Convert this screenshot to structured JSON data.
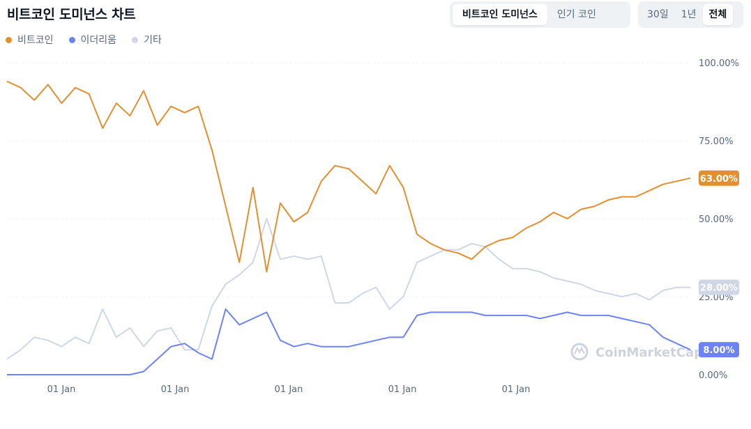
{
  "title": "비트코인 도미넌스 차트",
  "view_toggle": [
    {
      "label": "비트코인 도미넌스",
      "active": true
    },
    {
      "label": "인기 코인",
      "active": false
    }
  ],
  "range_toggle": [
    {
      "label": "30일",
      "active": false
    },
    {
      "label": "1년",
      "active": false
    },
    {
      "label": "전체",
      "active": true
    }
  ],
  "watermark": "CoinMarketCap",
  "chart_data": {
    "type": "line",
    "title": "비트코인 도미넌스 차트",
    "ylim": [
      0,
      100
    ],
    "y_ticks": [
      "0.00%",
      "25.00%",
      "50.00%",
      "75.00%",
      "100.00%"
    ],
    "x_ticks": [
      "01 Jan",
      "01 Jan",
      "01 Jan",
      "01 Jan",
      "01 Jan"
    ],
    "grid": true,
    "legend_position": "top-left",
    "x": [
      0,
      2,
      4,
      6,
      8,
      10,
      12,
      14,
      16,
      18,
      20,
      22,
      24,
      26,
      28,
      30,
      32,
      34,
      36,
      38,
      40,
      42,
      44,
      46,
      48,
      50,
      52,
      54,
      56,
      58,
      60,
      62,
      64,
      66,
      68,
      70,
      72,
      74,
      76,
      78,
      80,
      82,
      84,
      86,
      88,
      90,
      92,
      94,
      96,
      98,
      100
    ],
    "series": [
      {
        "name": "비트코인",
        "color": "#e38e2f",
        "end_label": "63.00%",
        "values": [
          94,
          92,
          88,
          93,
          87,
          92,
          90,
          79,
          87,
          83,
          91,
          80,
          86,
          84,
          86,
          72,
          54,
          36,
          60,
          33,
          55,
          49,
          52,
          62,
          67,
          66,
          62,
          58,
          67,
          60,
          45,
          42,
          40,
          39,
          37,
          41,
          43,
          44,
          47,
          49,
          52,
          50,
          53,
          54,
          56,
          57,
          57,
          59,
          61,
          62,
          63
        ]
      },
      {
        "name": "이더리움",
        "color": "#6d82f5",
        "end_label": "8.00%",
        "values": [
          0,
          0,
          0,
          0,
          0,
          0,
          0,
          0,
          0,
          0,
          1,
          5,
          9,
          10,
          7,
          5,
          21,
          16,
          18,
          20,
          11,
          9,
          10,
          9,
          9,
          9,
          10,
          11,
          12,
          12,
          19,
          20,
          20,
          20,
          20,
          19,
          19,
          19,
          19,
          18,
          19,
          20,
          19,
          19,
          19,
          18,
          17,
          16,
          12,
          10,
          8
        ]
      },
      {
        "name": "기타",
        "color": "#cfd6e4",
        "end_label": "28.00%",
        "values": [
          5,
          8,
          12,
          11,
          9,
          12,
          10,
          21,
          12,
          15,
          9,
          14,
          15,
          8,
          8,
          22,
          29,
          32,
          36,
          50,
          37,
          38,
          37,
          38,
          23,
          23,
          26,
          28,
          21,
          25,
          36,
          38,
          40,
          40,
          42,
          41,
          37,
          34,
          34,
          33,
          31,
          30,
          29,
          27,
          26,
          25,
          26,
          24,
          27,
          28,
          28
        ]
      }
    ]
  }
}
